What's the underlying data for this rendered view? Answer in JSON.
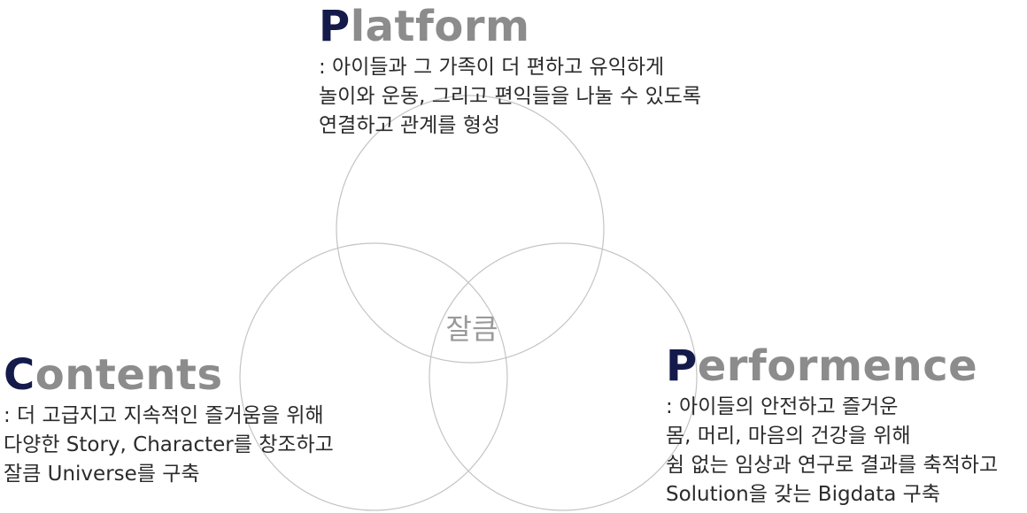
{
  "center_label": "잘큼",
  "circles": [
    {
      "name": "platform"
    },
    {
      "name": "contents"
    },
    {
      "name": "performence"
    }
  ],
  "platform": {
    "initial": "P",
    "rest": "latform",
    "lines": [
      ": 아이들과 그 가족이 더 편하고 유익하게",
      "놀이와 운동, 그리고 편익들을 나눌 수 있도록",
      "연결하고 관계를 형성"
    ]
  },
  "contents": {
    "initial": "C",
    "rest": "ontents",
    "lines": [
      ": 더 고급지고 지속적인 즐거움을 위해",
      "다양한 Story, Character를 창조하고",
      "잘큼 Universe를 구축"
    ]
  },
  "performence": {
    "initial": "P",
    "rest": "erformence",
    "lines": [
      ": 아이들의 안전하고 즐거운",
      "몸, 머리, 마음의 건강을 위해",
      "쉼 없는 임상과 연구로 결과를 축적하고",
      "Solution을 갖는 Bigdata 구축"
    ]
  },
  "colors": {
    "initial": "#141a4a",
    "heading_rest": "#8c8c8c",
    "circle_stroke": "#c4c4c4",
    "center_label": "#9a9a9a",
    "body_text": "#2b2b2b"
  }
}
